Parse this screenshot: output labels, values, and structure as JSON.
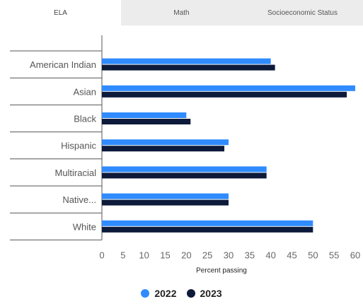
{
  "tabs": [
    {
      "label": "ELA",
      "active": true
    },
    {
      "label": "Math",
      "active": false
    },
    {
      "label": "Socioeconomic Status",
      "active": false
    }
  ],
  "colors": {
    "series_2022": "#2f8bff",
    "series_2023": "#0d1a3a"
  },
  "chart_data": {
    "type": "bar",
    "orientation": "horizontal",
    "categories": [
      "American Indian",
      "Asian",
      "Black",
      "Hispanic",
      "Multiracial",
      "Native...",
      "White"
    ],
    "series": [
      {
        "name": "2022",
        "values": [
          40,
          60,
          20,
          30,
          39,
          30,
          50
        ]
      },
      {
        "name": "2023",
        "values": [
          41,
          58,
          21,
          29,
          39,
          30,
          50
        ]
      }
    ],
    "xlabel": "Percent passing",
    "xlim": [
      0,
      60
    ],
    "xticks": [
      0,
      5,
      10,
      15,
      20,
      25,
      30,
      35,
      40,
      45,
      50,
      55,
      60
    ],
    "legend_position": "bottom-center",
    "grid": false
  }
}
